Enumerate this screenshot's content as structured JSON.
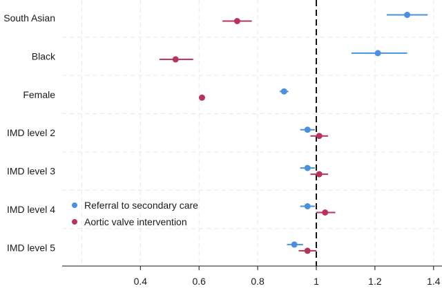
{
  "chart_data": {
    "type": "scatter",
    "xlim": [
      0.2,
      1.4
    ],
    "x_ticks": [
      0.4,
      0.6,
      0.8,
      1,
      1.2,
      1.4
    ],
    "x_tick_labels": [
      "0.4",
      "0.6",
      "0.8",
      "1",
      "1.2",
      "1.4"
    ],
    "reference_line": 1,
    "categories": [
      "South Asian",
      "Black",
      "Female",
      "IMD level 2",
      "IMD level 3",
      "IMD level 4",
      "IMD level 5"
    ],
    "grid": true,
    "legend_position": "bottom-left",
    "series": [
      {
        "name": "Referral to secondary care",
        "color": "#4a90e2",
        "points": [
          {
            "category": "South Asian",
            "estimate": 1.31,
            "lower": 1.24,
            "upper": 1.38
          },
          {
            "category": "Black",
            "estimate": 1.21,
            "lower": 1.12,
            "upper": 1.31
          },
          {
            "category": "Female",
            "estimate": 0.89,
            "lower": 0.875,
            "upper": 0.905
          },
          {
            "category": "IMD level 2",
            "estimate": 0.97,
            "lower": 0.945,
            "upper": 0.995
          },
          {
            "category": "IMD level 3",
            "estimate": 0.97,
            "lower": 0.945,
            "upper": 0.995
          },
          {
            "category": "IMD level 4",
            "estimate": 0.97,
            "lower": 0.945,
            "upper": 0.995
          },
          {
            "category": "IMD level 5",
            "estimate": 0.925,
            "lower": 0.9,
            "upper": 0.955
          }
        ]
      },
      {
        "name": "Aortic valve intervention",
        "color": "#b8325a",
        "points": [
          {
            "category": "South Asian",
            "estimate": 0.73,
            "lower": 0.68,
            "upper": 0.78
          },
          {
            "category": "Black",
            "estimate": 0.52,
            "lower": 0.465,
            "upper": 0.58
          },
          {
            "category": "Female",
            "estimate": 0.61,
            "lower": 0.6,
            "upper": 0.62
          },
          {
            "category": "IMD level 2",
            "estimate": 1.01,
            "lower": 0.98,
            "upper": 1.04
          },
          {
            "category": "IMD level 3",
            "estimate": 1.01,
            "lower": 0.98,
            "upper": 1.04
          },
          {
            "category": "IMD level 4",
            "estimate": 1.03,
            "lower": 1.0,
            "upper": 1.065
          },
          {
            "category": "IMD level 5",
            "estimate": 0.97,
            "lower": 0.94,
            "upper": 1.0
          }
        ]
      }
    ]
  }
}
